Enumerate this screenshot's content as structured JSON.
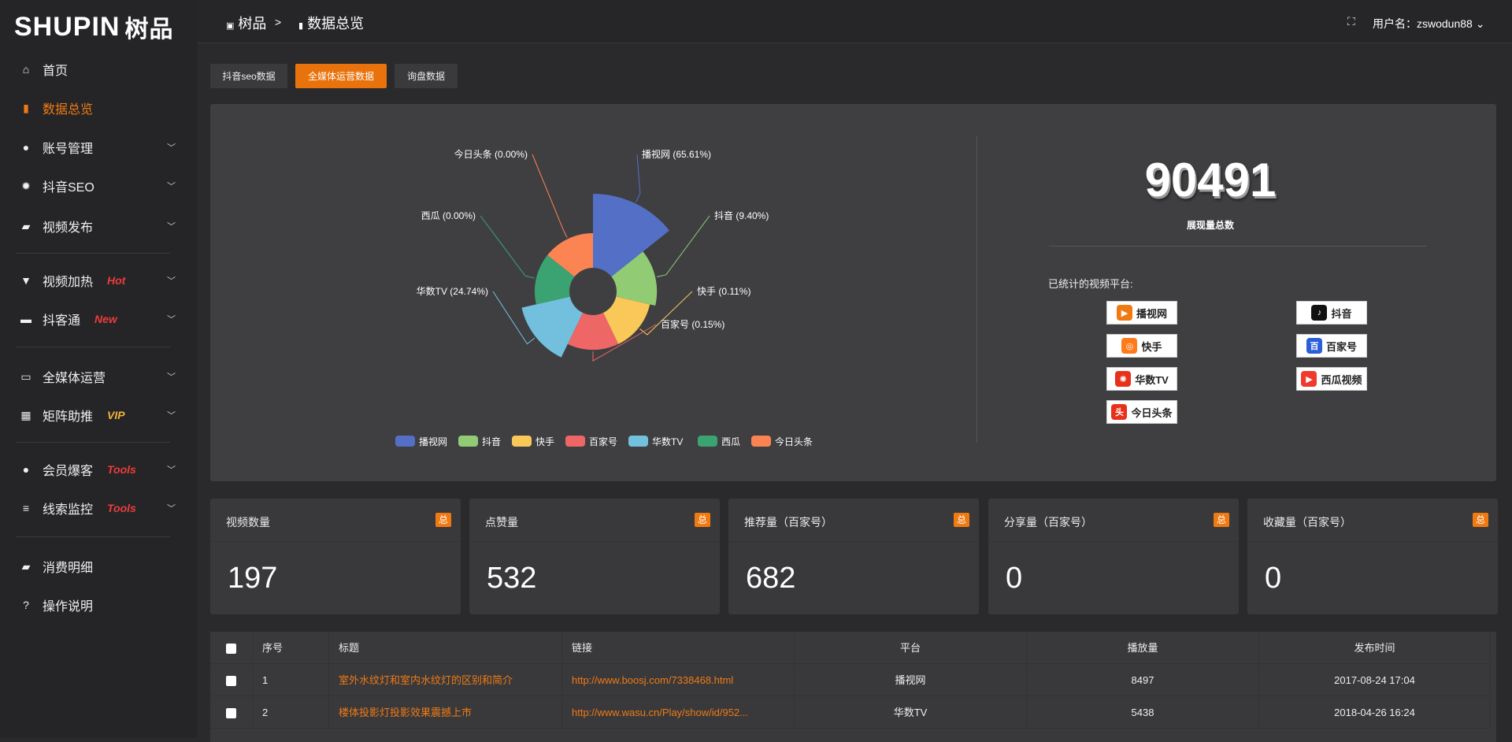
{
  "brand": {
    "logo_text": "SHUPIN",
    "logo_cn": "树品"
  },
  "sidebar": {
    "items": [
      {
        "label": "首页",
        "icon": "home-icon",
        "glyph": "⌂"
      },
      {
        "label": "数据总览",
        "icon": "bar-chart-icon",
        "glyph": "▮",
        "active": true
      },
      {
        "label": "账号管理",
        "icon": "user-icon",
        "glyph": "●",
        "chev": true
      },
      {
        "label": "抖音SEO",
        "icon": "gear-icon",
        "glyph": "✹",
        "chev": true
      },
      {
        "label": "视频发布",
        "icon": "camera-icon",
        "glyph": "▰",
        "chev": true
      },
      {
        "label": "视频加热",
        "icon": "heater-icon",
        "glyph": "▼",
        "chev": true,
        "tag": "Hot"
      },
      {
        "label": "抖客通",
        "icon": "chat-icon",
        "glyph": "▬",
        "chev": true,
        "tag": "New"
      },
      {
        "label": "全媒体运营",
        "icon": "monitor-icon",
        "glyph": "▭",
        "chev": true
      },
      {
        "label": "矩阵助推",
        "icon": "grid-icon",
        "glyph": "▦",
        "chev": true,
        "tag": "VIP"
      },
      {
        "label": "会员爆客",
        "icon": "member-icon",
        "glyph": "●",
        "chev": true,
        "tag": "Tools"
      },
      {
        "label": "线索监控",
        "icon": "sliders-icon",
        "glyph": "≡",
        "chev": true,
        "tag": "Tools"
      },
      {
        "label": "消费明细",
        "icon": "wallet-icon",
        "glyph": "▰"
      },
      {
        "label": "操作说明",
        "icon": "help-icon",
        "glyph": "?"
      }
    ]
  },
  "header": {
    "crumb_root": "树品",
    "crumb_sep": ">",
    "crumb_current": "数据总览",
    "user_label": "用户名：zswodun88"
  },
  "tabs": [
    {
      "label": "抖音seo数据"
    },
    {
      "label": "全媒体运营数据",
      "active": true
    },
    {
      "label": "询盘数据"
    }
  ],
  "chart_data": {
    "type": "pie",
    "rose": "radius",
    "categories": [
      "播视网",
      "抖音",
      "快手",
      "百家号",
      "华数TV",
      "西瓜",
      "今日头条"
    ],
    "values": [
      65.61,
      9.4,
      0.11,
      0.15,
      24.74,
      0.0,
      0.0
    ],
    "labels": [
      "播视网 (65.61%)",
      "抖音 (9.40%)",
      "快手 (0.11%)",
      "百家号 (0.15%)",
      "华数TV (24.74%)",
      "西瓜 (0.00%)",
      "今日头条 (0.00%)"
    ],
    "colors": [
      "#5470c6",
      "#91cc75",
      "#fac858",
      "#ee6666",
      "#73c0de",
      "#3ba272",
      "#fc8452"
    ],
    "legend": "bottom"
  },
  "summary": {
    "total": "90491",
    "total_label": "展现量总数",
    "platforms_label": "已统计的视频平台:"
  },
  "platforms": [
    {
      "name": "播视网",
      "color": "#f07a12",
      "glyph": "▶"
    },
    {
      "name": "抖音",
      "color": "#111",
      "glyph": "♪"
    },
    {
      "name": "快手",
      "color": "#ff7a1a",
      "glyph": "◎"
    },
    {
      "name": "百家号",
      "color": "#2b5fd9",
      "glyph": "百"
    },
    {
      "name": "华数TV",
      "color": "#e8311a",
      "glyph": "✺"
    },
    {
      "name": "西瓜视频",
      "color": "#f03a2e",
      "glyph": "▶"
    },
    {
      "name": "今日头条",
      "color": "#e8311a",
      "glyph": "头"
    }
  ],
  "stats": [
    {
      "title": "视频数量",
      "badge": "总",
      "value": "197"
    },
    {
      "title": "点赞量",
      "badge": "总",
      "value": "532"
    },
    {
      "title": "推荐量（百家号）",
      "badge": "总",
      "value": "682"
    },
    {
      "title": "分享量（百家号）",
      "badge": "总",
      "value": "0"
    },
    {
      "title": "收藏量（百家号）",
      "badge": "总",
      "value": "0"
    }
  ],
  "table": {
    "columns": [
      "序号",
      "标题",
      "链接",
      "平台",
      "播放量",
      "发布时间"
    ],
    "rows": [
      [
        "1",
        "室外水纹灯和室内水纹灯的区别和简介",
        "http://www.boosj.com/7338468.html",
        "播视网",
        "8497",
        "2017-08-24 17:04"
      ],
      [
        "2",
        "楼体投影灯投影效果震撼上市",
        "http://www.wasu.cn/Play/show/id/952...",
        "华数TV",
        "5438",
        "2018-04-26 16:24"
      ]
    ]
  }
}
